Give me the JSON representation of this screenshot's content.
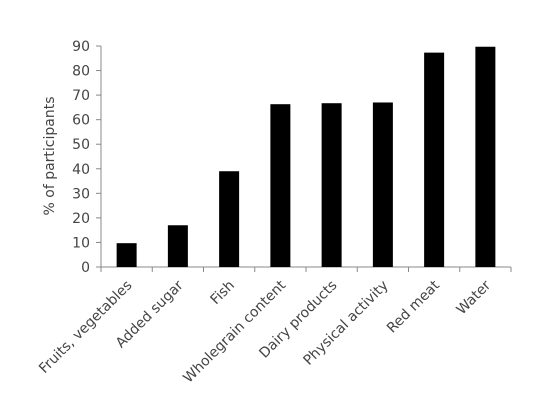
{
  "chart_data": {
    "type": "bar",
    "ylabel": "% of participants",
    "xlabel": "",
    "ylim": [
      0,
      90
    ],
    "yticks": [
      0,
      10,
      20,
      30,
      40,
      50,
      60,
      70,
      80,
      90
    ],
    "categories": [
      "Fruits, vegetables",
      "Added sugar",
      "Fish",
      "Wholegrain content",
      "Dairy products",
      "Physical activity",
      "Red meat",
      "Water"
    ],
    "values": [
      9.7,
      17,
      39,
      66.3,
      66.7,
      67,
      87.3,
      89.7
    ],
    "grid": false,
    "colors": {
      "bar": "#000000",
      "axis": "#888888",
      "text": "#444444"
    }
  }
}
